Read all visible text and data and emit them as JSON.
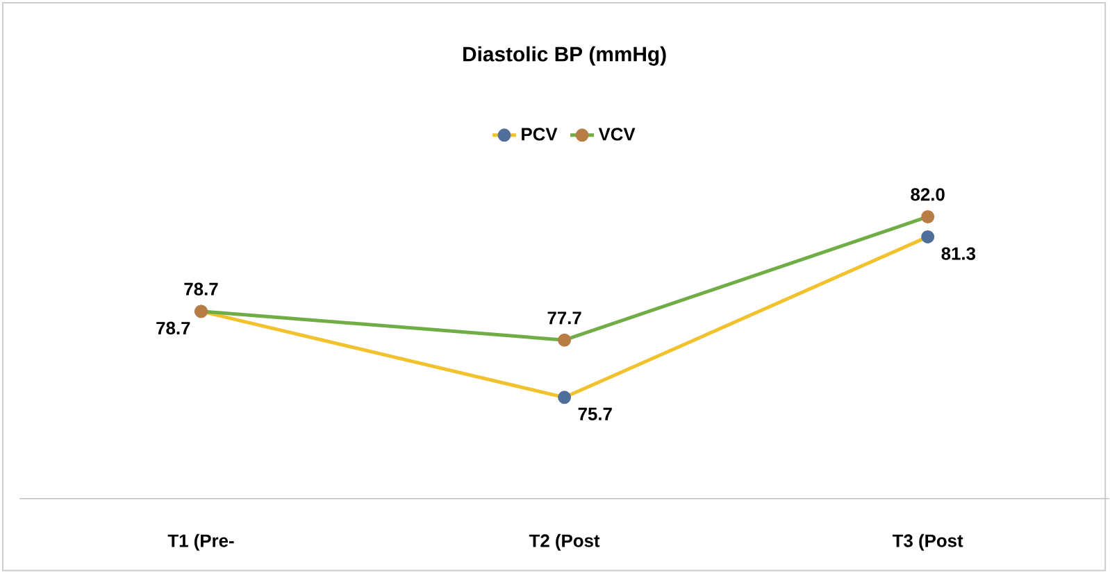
{
  "chart_data": {
    "type": "line",
    "title": "Diastolic BP (mmHg)",
    "categories": [
      "T1 (Pre-",
      "T2 (Post",
      "T3 (Post"
    ],
    "series": [
      {
        "name": "PCV",
        "color": "#f2c12e",
        "values": [
          78.7,
          75.7,
          81.3
        ],
        "value_labels": [
          "78.7",
          "75.7",
          "81.3"
        ]
      },
      {
        "name": "VCV",
        "color": "#70ad47",
        "values": [
          78.7,
          77.7,
          82.0
        ],
        "value_labels": [
          "78.7",
          "77.7",
          "82.0"
        ]
      }
    ],
    "legend": "top",
    "marker": "circle",
    "line_style": "solid"
  }
}
